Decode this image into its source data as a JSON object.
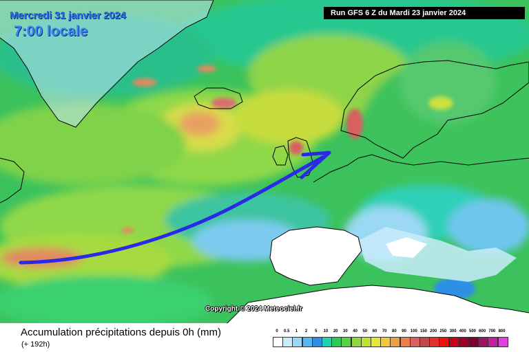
{
  "map": {
    "date_text": "Mercredi 31 janvier 2024",
    "time_text": "7:00 locale",
    "run_text": "Run GFS 6 Z du Mardi 23 janvier 2024",
    "copyright_text": "Copyright © 2024 Meteociel.fr",
    "colors": {
      "ocean_green": "#3ec45a",
      "arrow": "#2a2ae6",
      "land_white": "#ffffff",
      "ice_blue": "#b8dcf0"
    }
  },
  "footer": {
    "title": "Accumulation précipitations depuis 0h (mm)",
    "subtitle": "(+ 192h)"
  },
  "legend": {
    "labels": [
      "0",
      "0.5",
      "1",
      "2",
      "5",
      "10",
      "20",
      "30",
      "40",
      "50",
      "60",
      "70",
      "80",
      "90",
      "100",
      "150",
      "200",
      "250",
      "300",
      "400",
      "500",
      "600",
      "700",
      "800"
    ],
    "colors": [
      "#ffffff",
      "#c8ecfa",
      "#96d8f6",
      "#5ab8f0",
      "#2f8fe6",
      "#1fd1b0",
      "#2ec85a",
      "#5ad04a",
      "#8fd83c",
      "#bfe030",
      "#e6e636",
      "#f0c83a",
      "#eea040",
      "#e88050",
      "#d86060",
      "#c04848",
      "#e03030",
      "#f01010",
      "#c80018",
      "#a00028",
      "#800030",
      "#a01060",
      "#c020a0",
      "#e040e0"
    ]
  }
}
